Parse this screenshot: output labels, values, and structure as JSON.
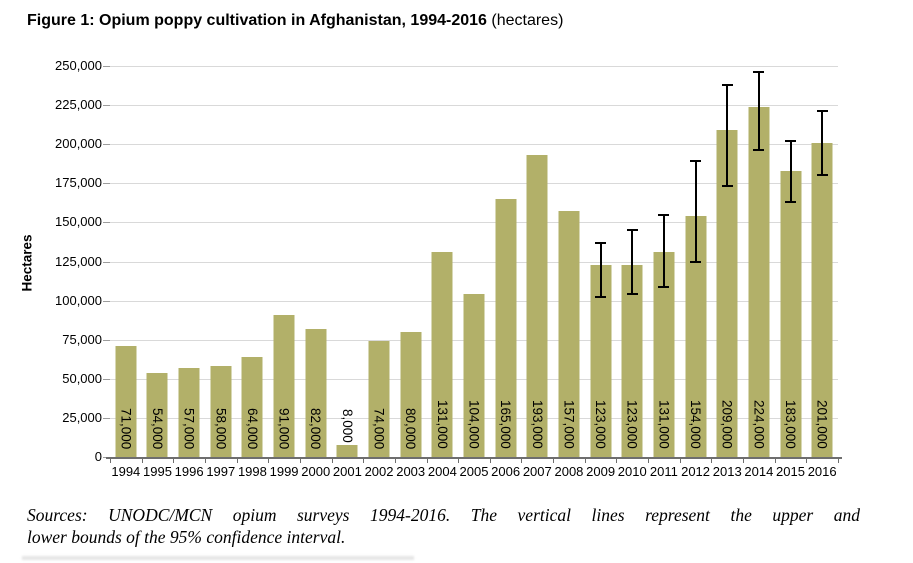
{
  "header": {
    "title_bold": "Figure 1: Opium poppy cultivation in Afghanistan, 1994-2016",
    "title_suffix": " (hectares)"
  },
  "footer": {
    "source_line1": "Sources: UNODC/MCN opium surveys 1994-2016. The vertical lines represent the upper and",
    "source_line2": "lower bounds of the 95% confidence interval."
  },
  "colors": {
    "bar_fill": "#B2B069",
    "gridline": "#D9D9D9",
    "axis_line": "#6E6E6E",
    "tick_mark": "#9C9C9C",
    "error_bar": "#000000",
    "text": "#000000"
  },
  "chart_data": {
    "type": "bar",
    "title": "Figure 1: Opium poppy cultivation in Afghanistan, 1994-2016 (hectares)",
    "xlabel": "",
    "ylabel": "Hectares",
    "ylim": [
      0,
      250000
    ],
    "grid": true,
    "legend_position": "none",
    "ytick_values": [
      0,
      25000,
      50000,
      75000,
      100000,
      125000,
      150000,
      175000,
      200000,
      225000,
      250000
    ],
    "ytick_labels": [
      "0",
      "25,000",
      "50,000",
      "75,000",
      "100,000",
      "125,000",
      "150,000",
      "175,000",
      "200,000",
      "225,000",
      "250,000"
    ],
    "categories": [
      "1994",
      "1995",
      "1996",
      "1997",
      "1998",
      "1999",
      "2000",
      "2001",
      "2002",
      "2003",
      "2004",
      "2005",
      "2006",
      "2007",
      "2008",
      "2009",
      "2010",
      "2011",
      "2012",
      "2013",
      "2014",
      "2015",
      "2016"
    ],
    "values": [
      71000,
      54000,
      57000,
      58000,
      64000,
      91000,
      82000,
      8000,
      74000,
      80000,
      131000,
      104000,
      165000,
      193000,
      157000,
      123000,
      123000,
      131000,
      154000,
      209000,
      224000,
      183000,
      201000
    ],
    "bar_labels": [
      "71,000",
      "54,000",
      "57,000",
      "58,000",
      "64,000",
      "91,000",
      "82,000",
      "8,000",
      "74,000",
      "80,000",
      "131,000",
      "104,000",
      "165,000",
      "193,000",
      "157,000",
      "123,000",
      "123,000",
      "131,000",
      "154,000",
      "209,000",
      "224,000",
      "183,000",
      "201,000"
    ],
    "confidence_intervals": [
      {
        "category": "2009",
        "lower": 102000,
        "upper": 137000
      },
      {
        "category": "2010",
        "lower": 104000,
        "upper": 145000
      },
      {
        "category": "2011",
        "lower": 109000,
        "upper": 155000
      },
      {
        "category": "2012",
        "lower": 125000,
        "upper": 189000
      },
      {
        "category": "2013",
        "lower": 173000,
        "upper": 238000
      },
      {
        "category": "2014",
        "lower": 196000,
        "upper": 246000
      },
      {
        "category": "2015",
        "lower": 163000,
        "upper": 202000
      },
      {
        "category": "2016",
        "lower": 180000,
        "upper": 221000
      }
    ]
  }
}
